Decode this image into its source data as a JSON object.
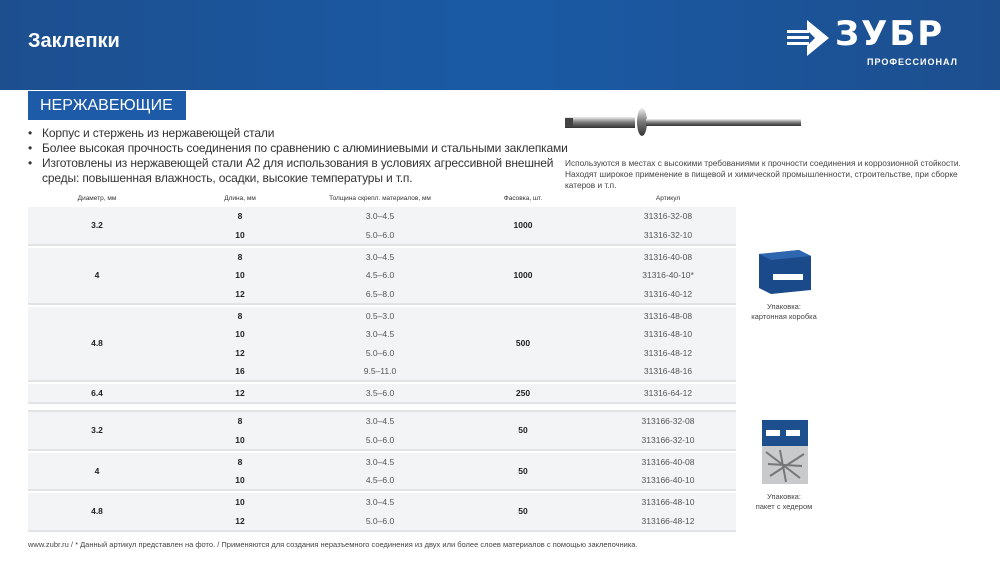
{
  "header": {
    "title": "Заклепки",
    "logo_text": "ЗУБР",
    "logo_sub": "ПРОФЕССИОНАЛ"
  },
  "category": "НЕРЖАВЕЮЩИЕ",
  "bullets": [
    "Корпус и стержень из нержавеющей стали",
    "Более высокая прочность соединения по сравнению с алюминиевыми и стальными заклепками",
    "Изготовлены из нержавеющей стали A2 для использования в условиях агрессивной внешней среды: повышенная влажность, осадки, высокие температуры и т.п."
  ],
  "description": "Используются в местах с высокими требованиями к прочности соединения и коррозионной стойкости. Находят широкое применение в пищевой и химической промышленности, строительстве, при сборке катеров и т.п.",
  "table": {
    "columns": [
      "Диаметр, мм",
      "Длина, мм",
      "Толщина скрепл. материалов, мм",
      "Фасовка, шт.",
      "Артикул"
    ],
    "groups": [
      {
        "diameter": "3.2",
        "qty": "1000",
        "rows": [
          [
            "8",
            "3.0–4.5",
            "31316-32-08"
          ],
          [
            "10",
            "5.0–6.0",
            "31316-32-10"
          ]
        ]
      },
      {
        "diameter": "4",
        "qty": "1000",
        "rows": [
          [
            "8",
            "3.0–4.5",
            "31316-40-08"
          ],
          [
            "10",
            "4.5–6.0",
            "31316-40-10*"
          ],
          [
            "12",
            "6.5–8.0",
            "31316-40-12"
          ]
        ]
      },
      {
        "diameter": "4.8",
        "qty": "500",
        "rows": [
          [
            "8",
            "0.5–3.0",
            "31316-48-08"
          ],
          [
            "10",
            "3.0–4.5",
            "31316-48-10"
          ],
          [
            "12",
            "5.0–6.0",
            "31316-48-12"
          ],
          [
            "16",
            "9.5–11.0",
            "31316-48-16"
          ]
        ]
      },
      {
        "diameter": "6.4",
        "qty": "250",
        "rows": [
          [
            "12",
            "3.5–6.0",
            "31316-64-12"
          ]
        ]
      }
    ],
    "groups2": [
      {
        "diameter": "3.2",
        "qty": "50",
        "rows": [
          [
            "8",
            "3.0–4.5",
            "313166-32-08"
          ],
          [
            "10",
            "5.0–6.0",
            "313166-32-10"
          ]
        ]
      },
      {
        "diameter": "4",
        "qty": "50",
        "rows": [
          [
            "8",
            "3.0–4.5",
            "313166-40-08"
          ],
          [
            "10",
            "4.5–6.0",
            "313166-40-10"
          ]
        ]
      },
      {
        "diameter": "4.8",
        "qty": "50",
        "rows": [
          [
            "10",
            "3.0–4.5",
            "313166-48-10"
          ],
          [
            "12",
            "5.0–6.0",
            "313166-48-12"
          ]
        ]
      }
    ]
  },
  "packaging": [
    {
      "label1": "Упаковка:",
      "label2": "картонная коробка"
    },
    {
      "label1": "Упаковка:",
      "label2": "пакет с хедером"
    }
  ],
  "footer": "www.zubr.ru  /  * Данный артикул представлен на фото.  /  Применяются для создания неразъемного соединения из двух или более слоев материалов с помощью заклепочника.",
  "colors": {
    "brand_blue": "#1d5aa8"
  }
}
